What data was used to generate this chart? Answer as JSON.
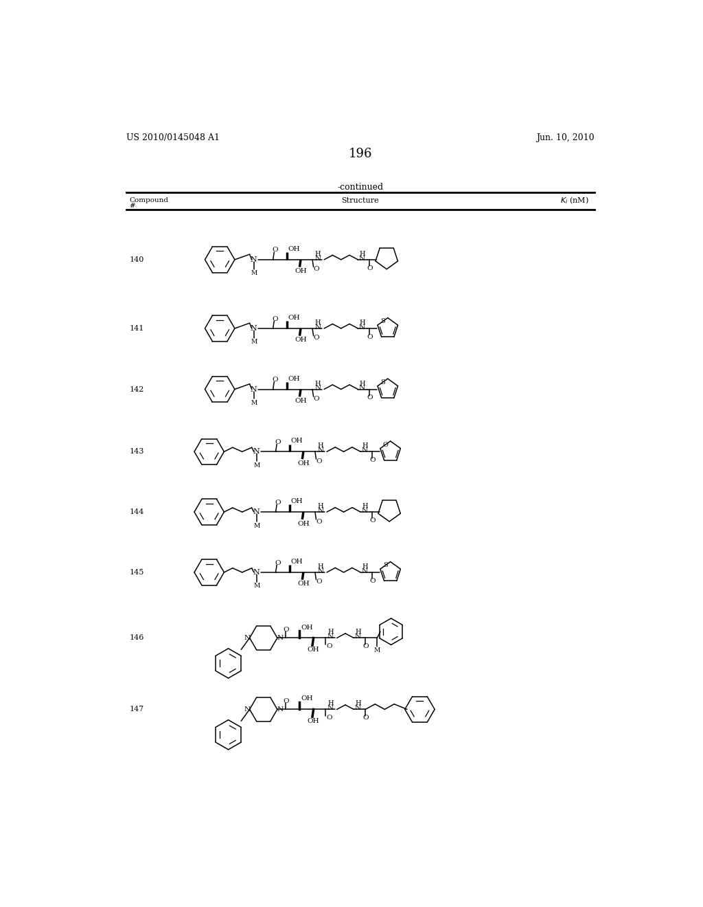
{
  "page_number": "196",
  "patent_number": "US 2010/0145048 A1",
  "patent_date": "Jun. 10, 2010",
  "continued": "-continued",
  "col1": "Compound\n#",
  "col2": "Structure",
  "col3": "K",
  "col3_sub": "i",
  "col3_unit": " (nM)",
  "compounds": [
    140,
    141,
    142,
    143,
    144,
    145,
    146,
    147
  ],
  "compound_y": [
    285,
    415,
    530,
    648,
    762,
    876,
    1000,
    1135
  ],
  "bg": "#ffffff",
  "lc": "#000000"
}
